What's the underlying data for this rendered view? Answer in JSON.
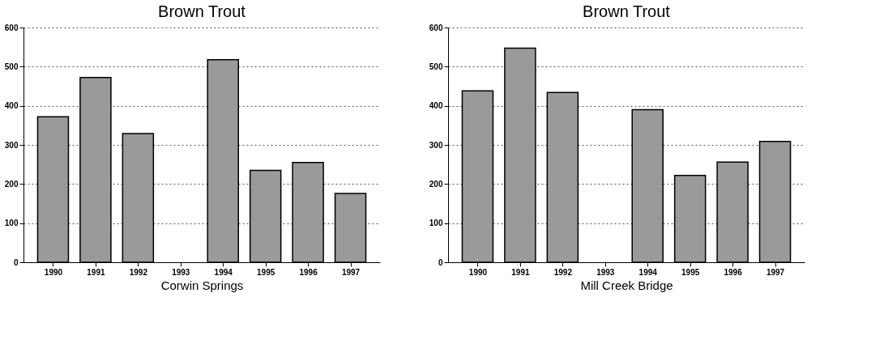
{
  "chart_data": [
    {
      "type": "bar",
      "title": "Brown Trout",
      "xlabel": "Corwin Springs",
      "categories": [
        "1990",
        "1991",
        "1992",
        "1993",
        "1994",
        "1995",
        "1996",
        "1997"
      ],
      "values": [
        372,
        472,
        329,
        null,
        518,
        235,
        255,
        176
      ],
      "color": "#9a9a9a",
      "ylim": [
        0,
        600
      ],
      "yticks": [
        0,
        100,
        200,
        300,
        400,
        500,
        600
      ],
      "grid": "y"
    },
    {
      "type": "bar",
      "title": "Brown Trout",
      "xlabel": "Mill Creek Bridge",
      "categories": [
        "1990",
        "1991",
        "1992",
        "1993",
        "1994",
        "1995",
        "1996",
        "1997"
      ],
      "values": [
        438,
        547,
        434,
        null,
        390,
        222,
        256,
        309
      ],
      "color": "#9a9a9a",
      "ylim": [
        0,
        600
      ],
      "yticks": [
        0,
        100,
        200,
        300,
        400,
        500,
        600
      ],
      "grid": "y"
    }
  ]
}
